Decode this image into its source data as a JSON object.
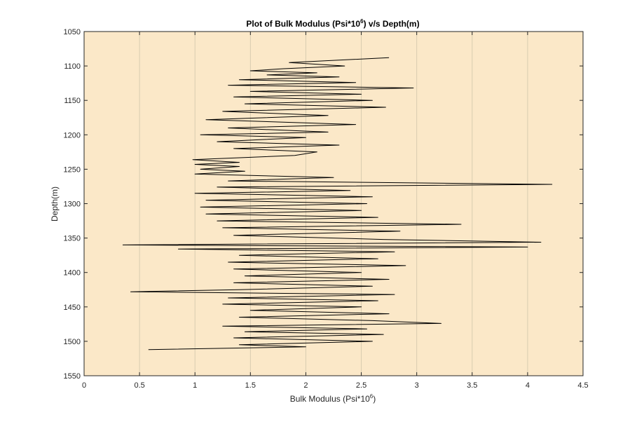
{
  "chart_data": {
    "type": "line",
    "title": "Plot of Bulk Modulus (Psi*10",
    "title_sup": "6",
    "title_tail": ") v/s Depth(m)",
    "xlabel": "Bulk Modulus (Psi*10",
    "xlabel_sup": "6",
    "xlabel_tail": ")",
    "ylabel": "Depth(m)",
    "xlim": [
      0,
      4.5
    ],
    "ylim": [
      1050,
      1550
    ],
    "y_reversed": true,
    "x_ticks": [
      "0",
      "0.5",
      "1",
      "1.5",
      "2",
      "2.5",
      "3",
      "3.5",
      "4",
      "4.5"
    ],
    "y_ticks": [
      "1050",
      "1100",
      "1150",
      "1200",
      "1250",
      "1300",
      "1350",
      "1400",
      "1450",
      "1500",
      "1550"
    ],
    "grid": "vertical",
    "colors": {
      "plot_bg": "#fbe8c8",
      "line": "#000000",
      "grid": "#d8ccb0",
      "axis": "#262626"
    },
    "series": [
      {
        "depth": [
          1088,
          1095,
          1100,
          1104,
          1107,
          1110,
          1113,
          1116,
          1120,
          1124,
          1128,
          1132,
          1137,
          1141,
          1145,
          1150,
          1155,
          1160,
          1166,
          1172,
          1178,
          1185,
          1190,
          1196,
          1200,
          1204,
          1210,
          1215,
          1220,
          1225,
          1230,
          1236,
          1240,
          1243,
          1246,
          1250,
          1253,
          1257,
          1262,
          1267,
          1272,
          1276,
          1281,
          1285,
          1290,
          1295,
          1300,
          1305,
          1310,
          1315,
          1320,
          1325,
          1330,
          1335,
          1340,
          1346,
          1352,
          1356,
          1360,
          1363,
          1366,
          1370,
          1375,
          1380,
          1385,
          1390,
          1395,
          1400,
          1405,
          1410,
          1415,
          1420,
          1425,
          1428,
          1432,
          1437,
          1441,
          1446,
          1450,
          1455,
          1460,
          1465,
          1470,
          1474,
          1478,
          1482,
          1486,
          1490,
          1495,
          1500,
          1505,
          1508,
          1512
        ],
        "modulus": [
          2.75,
          1.85,
          2.35,
          1.8,
          1.5,
          2.1,
          1.65,
          2.3,
          1.4,
          2.45,
          1.3,
          2.97,
          1.5,
          2.5,
          1.35,
          2.6,
          1.45,
          2.72,
          1.25,
          2.2,
          1.1,
          2.45,
          1.3,
          2.2,
          1.05,
          2.0,
          1.2,
          2.3,
          1.35,
          2.1,
          1.9,
          0.98,
          1.4,
          1.0,
          1.4,
          1.05,
          1.45,
          1.0,
          2.25,
          1.3,
          4.22,
          1.2,
          2.4,
          1.0,
          2.6,
          1.1,
          2.55,
          1.05,
          2.5,
          1.1,
          2.65,
          1.2,
          3.4,
          1.25,
          2.85,
          1.35,
          2.7,
          4.12,
          0.35,
          4.0,
          0.85,
          2.8,
          1.4,
          2.65,
          1.3,
          2.9,
          1.35,
          2.5,
          1.45,
          2.75,
          1.35,
          2.6,
          1.4,
          0.42,
          2.8,
          1.3,
          2.65,
          1.25,
          2.5,
          1.5,
          2.75,
          1.4,
          2.6,
          3.22,
          1.25,
          2.55,
          1.45,
          2.7,
          1.35,
          2.6,
          1.4,
          2.0,
          0.58
        ]
      }
    ]
  }
}
